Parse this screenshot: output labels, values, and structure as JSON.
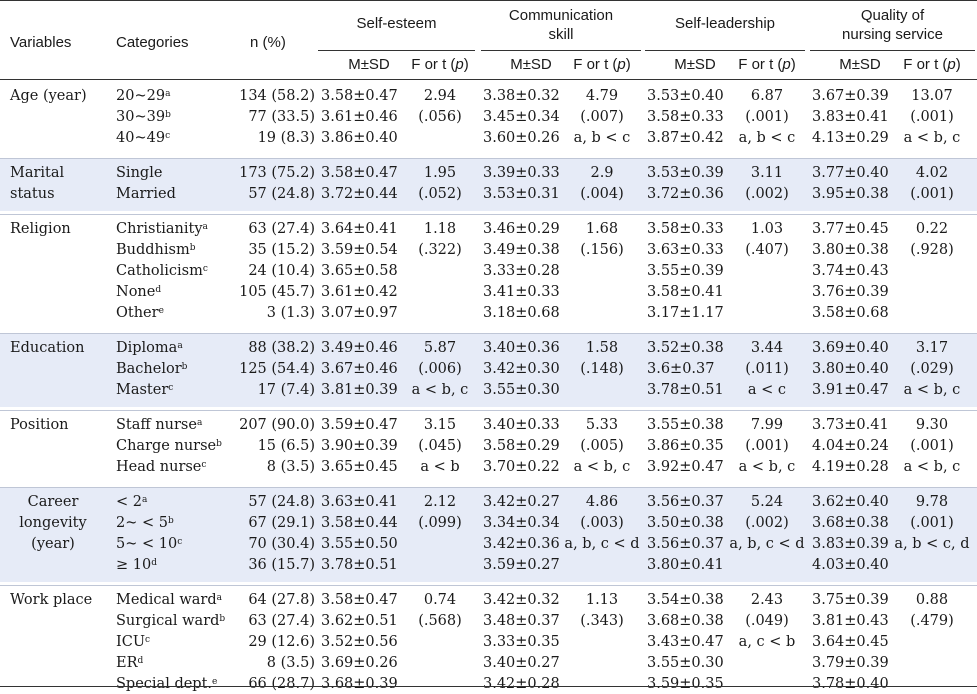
{
  "header": {
    "variables": "Variables",
    "categories": "Categories",
    "n": "n (%)",
    "groups": [
      "Self-esteem",
      "Communication\nskill",
      "Self-leadership",
      "Quality of\nnursing service"
    ],
    "msd": "M±SD",
    "ft": "F or t (p)"
  },
  "rows": [
    {
      "variable": "Age (year)",
      "shaded": false,
      "items": [
        {
          "cat": "20~29",
          "sup": "a",
          "n": "134 (58.2)",
          "v": [
            "3.58±0.47",
            "2.94",
            "3.38±0.32",
            "4.79",
            "3.53±0.40",
            "6.87",
            "3.67±0.39",
            "13.07"
          ]
        },
        {
          "cat": "30~39",
          "sup": "b",
          "n": "77 (33.5)",
          "v": [
            "3.61±0.46",
            "(.056)",
            "3.45±0.34",
            "(.007)",
            "3.58±0.33",
            "(.001)",
            "3.83±0.41",
            "(.001)"
          ]
        },
        {
          "cat": "40~49",
          "sup": "c",
          "n": "19 (8.3)",
          "v": [
            "3.86±0.40",
            "",
            "3.60±0.26",
            "a, b < c",
            "3.87±0.42",
            "a, b < c",
            "4.13±0.29",
            "a < b, c"
          ]
        }
      ]
    },
    {
      "variable": "Marital\nstatus",
      "shaded": true,
      "items": [
        {
          "cat": "Single",
          "sup": "",
          "n": "173 (75.2)",
          "v": [
            "3.58±0.47",
            "1.95",
            "3.39±0.33",
            "2.9",
            "3.53±0.39",
            "3.11",
            "3.77±0.40",
            "4.02"
          ]
        },
        {
          "cat": "Married",
          "sup": "",
          "n": "57 (24.8)",
          "v": [
            "3.72±0.44",
            "(.052)",
            "3.53±0.31",
            "(.004)",
            "3.72±0.36",
            "(.002)",
            "3.95±0.38",
            "(.001)"
          ]
        }
      ]
    },
    {
      "variable": "Religion",
      "shaded": false,
      "items": [
        {
          "cat": "Christianity",
          "sup": "a",
          "n": "63 (27.4)",
          "v": [
            "3.64±0.41",
            "1.18",
            "3.46±0.29",
            "1.68",
            "3.58±0.33",
            "1.03",
            "3.77±0.45",
            "0.22"
          ]
        },
        {
          "cat": "Buddhism",
          "sup": "b",
          "n": "35 (15.2)",
          "v": [
            "3.59±0.54",
            "(.322)",
            "3.49±0.38",
            "(.156)",
            "3.63±0.33",
            "(.407)",
            "3.80±0.38",
            "(.928)"
          ]
        },
        {
          "cat": "Catholicism",
          "sup": "c",
          "n": "24 (10.4)",
          "v": [
            "3.65±0.58",
            "",
            "3.33±0.28",
            "",
            "3.55±0.39",
            "",
            "3.74±0.43",
            ""
          ]
        },
        {
          "cat": "None",
          "sup": "d",
          "n": "105 (45.7)",
          "v": [
            "3.61±0.42",
            "",
            "3.41±0.33",
            "",
            "3.58±0.41",
            "",
            "3.76±0.39",
            ""
          ]
        },
        {
          "cat": "Other",
          "sup": "e",
          "n": "3 (1.3)",
          "v": [
            "3.07±0.97",
            "",
            "3.18±0.68",
            "",
            "3.17±1.17",
            "",
            "3.58±0.68",
            ""
          ]
        }
      ]
    },
    {
      "variable": "Education",
      "shaded": true,
      "items": [
        {
          "cat": "Diploma",
          "sup": "a",
          "n": "88 (38.2)",
          "v": [
            "3.49±0.46",
            "5.87",
            "3.40±0.36",
            "1.58",
            "3.52±0.38",
            "3.44",
            "3.69±0.40",
            "3.17"
          ]
        },
        {
          "cat": "Bachelor",
          "sup": "b",
          "n": "125 (54.4)",
          "v": [
            "3.67±0.46",
            "(.006)",
            "3.42±0.30",
            "(.148)",
            "3.6±0.37",
            "(.011)",
            "3.80±0.40",
            "(.029)"
          ]
        },
        {
          "cat": "Master",
          "sup": "c",
          "n": "17 (7.4)",
          "v": [
            "3.81±0.39",
            "a < b, c",
            "3.55±0.30",
            "",
            "3.78±0.51",
            "a < c",
            "3.91±0.47",
            "a < b, c"
          ]
        }
      ]
    },
    {
      "variable": "Position",
      "shaded": false,
      "items": [
        {
          "cat": "Staff nurse",
          "sup": "a",
          "n": "207 (90.0)",
          "v": [
            "3.59±0.47",
            "3.15",
            "3.40±0.33",
            "5.33",
            "3.55±0.38",
            "7.99",
            "3.73±0.41",
            "9.30"
          ]
        },
        {
          "cat": "Charge nurse",
          "sup": "b",
          "n": "15 (6.5)",
          "v": [
            "3.90±0.39",
            "(.045)",
            "3.58±0.29",
            "(.005)",
            "3.86±0.35",
            "(.001)",
            "4.04±0.24",
            "(.001)"
          ]
        },
        {
          "cat": "Head nurse",
          "sup": "c",
          "n": "8 (3.5)",
          "v": [
            "3.65±0.45",
            "a < b",
            "3.70±0.22",
            "a < b, c",
            "3.92±0.47",
            "a < b, c",
            "4.19±0.28",
            "a < b, c"
          ]
        }
      ]
    },
    {
      "variable": "Career\nlongevity\n(year)",
      "shaded": true,
      "items": [
        {
          "cat": "< 2",
          "sup": "a",
          "n": "57 (24.8)",
          "v": [
            "3.63±0.41",
            "2.12",
            "3.42±0.27",
            "4.86",
            "3.56±0.37",
            "5.24",
            "3.62±0.40",
            "9.78"
          ]
        },
        {
          "cat": "2~ < 5",
          "sup": "b",
          "n": "67 (29.1)",
          "v": [
            "3.58±0.44",
            "(.099)",
            "3.34±0.34",
            "(.003)",
            "3.50±0.38",
            "(.002)",
            "3.68±0.38",
            "(.001)"
          ]
        },
        {
          "cat": "5~ < 10",
          "sup": "c",
          "n": "70 (30.4)",
          "v": [
            "3.55±0.50",
            "",
            "3.42±0.36",
            "a, b, c < d",
            "3.56±0.37",
            "a, b, c < d",
            "3.83±0.39",
            "a, b < c, d"
          ]
        },
        {
          "cat": "≥ 10",
          "sup": "d",
          "n": "36 (15.7)",
          "v": [
            "3.78±0.51",
            "",
            "3.59±0.27",
            "",
            "3.80±0.41",
            "",
            "4.03±0.40",
            ""
          ]
        }
      ]
    },
    {
      "variable": "Work place",
      "shaded": false,
      "items": [
        {
          "cat": "Medical ward",
          "sup": "a",
          "n": "64 (27.8)",
          "v": [
            "3.58±0.47",
            "0.74",
            "3.42±0.32",
            "1.13",
            "3.54±0.38",
            "2.43",
            "3.75±0.39",
            "0.88"
          ]
        },
        {
          "cat": "Surgical ward",
          "sup": "b",
          "n": "63 (27.4)",
          "v": [
            "3.62±0.51",
            "(.568)",
            "3.48±0.37",
            "(.343)",
            "3.68±0.38",
            "(.049)",
            "3.81±0.43",
            "(.479)"
          ]
        },
        {
          "cat": "ICU",
          "sup": "c",
          "n": "29 (12.6)",
          "v": [
            "3.52±0.56",
            "",
            "3.33±0.35",
            "",
            "3.43±0.47",
            "a, c < b",
            "3.64±0.45",
            ""
          ]
        },
        {
          "cat": "ER",
          "sup": "d",
          "n": "8 (3.5)",
          "v": [
            "3.69±0.26",
            "",
            "3.40±0.27",
            "",
            "3.55±0.30",
            "",
            "3.79±0.39",
            ""
          ]
        },
        {
          "cat": "Special dept.",
          "sup": "e",
          "n": "66 (28.7)",
          "v": [
            "3.68±0.39",
            "",
            "3.42±0.28",
            "",
            "3.59±0.35",
            "",
            "3.78±0.40",
            ""
          ]
        }
      ]
    }
  ]
}
